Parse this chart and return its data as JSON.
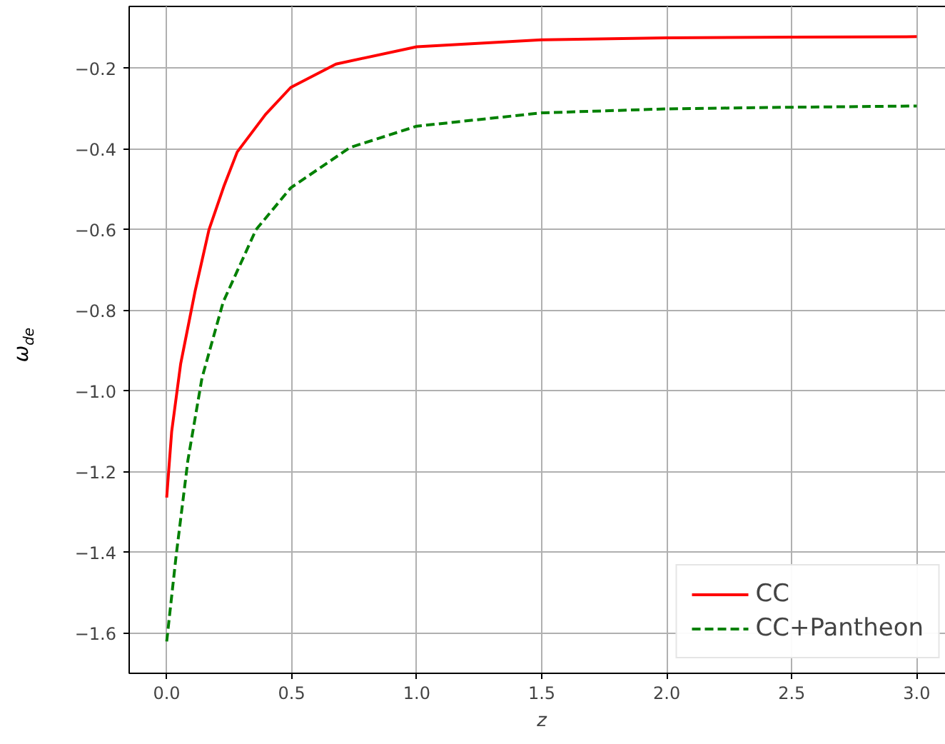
{
  "chart_data": {
    "type": "line",
    "xlabel": "z",
    "ylabel": "ω$_{de}$",
    "xlim": [
      -0.15,
      3.15
    ],
    "ylim": [
      -1.7,
      -0.046
    ],
    "xticks": [
      {
        "value": 0,
        "label": "0.0"
      },
      0.5,
      {
        "value": 1,
        "label": "1.0"
      },
      1.5,
      {
        "value": 2,
        "label": "2.0"
      },
      2.5,
      {
        "value": 3,
        "label": "3.0"
      }
    ],
    "yticks": [
      {
        "value": -1.6,
        "label": "−1.6"
      },
      {
        "value": -1.4,
        "label": "−1.4"
      },
      {
        "value": -1.2,
        "label": "−1.2"
      },
      {
        "value": -1.0,
        "label": "−1.0"
      },
      {
        "value": -0.8,
        "label": "−0.8"
      },
      {
        "value": -0.6,
        "label": "−0.6"
      },
      {
        "value": -0.4,
        "label": "−0.4"
      },
      {
        "value": -0.2,
        "label": "−0.2"
      }
    ],
    "grid": true,
    "legend": "bottom right",
    "series": [
      {
        "name": "CC",
        "color": "#ff0000",
        "line_style": "solid",
        "x": [
          0,
          0.02,
          0.056,
          0.113,
          0.169,
          0.23,
          0.282,
          0.395,
          0.496,
          0.677,
          1.0,
          1.5,
          2.0,
          2.5,
          3.0
        ],
        "values": [
          -1.264,
          -1.1,
          -0.932,
          -0.754,
          -0.6,
          -0.49,
          -0.407,
          -0.314,
          -0.247,
          -0.189,
          -0.146,
          -0.129,
          -0.124,
          -0.122,
          -0.121
        ]
      },
      {
        "name": "CC+Pantheon",
        "color": "#008000",
        "line_style": "dashed",
        "x": [
          0,
          0.038,
          0.085,
          0.141,
          0.226,
          0.357,
          0.496,
          0.733,
          1.0,
          1.5,
          2.0,
          2.5,
          3.0
        ],
        "values": [
          -1.621,
          -1.407,
          -1.171,
          -0.968,
          -0.779,
          -0.6,
          -0.496,
          -0.396,
          -0.343,
          -0.31,
          -0.3,
          -0.296,
          -0.293
        ]
      }
    ]
  }
}
